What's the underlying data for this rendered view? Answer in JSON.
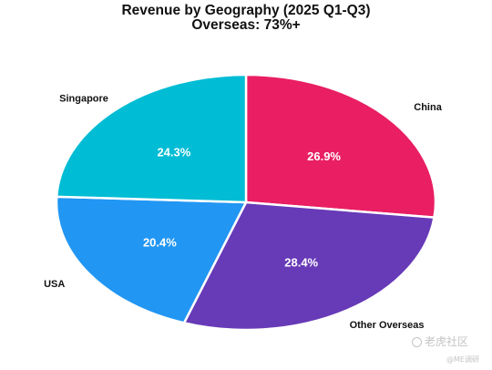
{
  "chart_data": {
    "type": "pie",
    "title": "Revenue by Geography (2025 Q1-Q3)",
    "subtitle": "Overseas: 73%+",
    "slices": [
      {
        "label": "China",
        "value": 26.9,
        "value_label": "26.9%",
        "color": "#e91e63"
      },
      {
        "label": "Other Overseas",
        "value": 28.4,
        "value_label": "28.4%",
        "color": "#673ab7"
      },
      {
        "label": "USA",
        "value": 20.4,
        "value_label": "20.4%",
        "color": "#2196f3"
      },
      {
        "label": "Singapore",
        "value": 24.3,
        "value_label": "24.3%",
        "color": "#00bcd4"
      }
    ],
    "start_angle": "12 o'clock",
    "direction": "clockwise"
  },
  "watermark": {
    "brand": "老虎社区",
    "handle": "@ME调研"
  }
}
